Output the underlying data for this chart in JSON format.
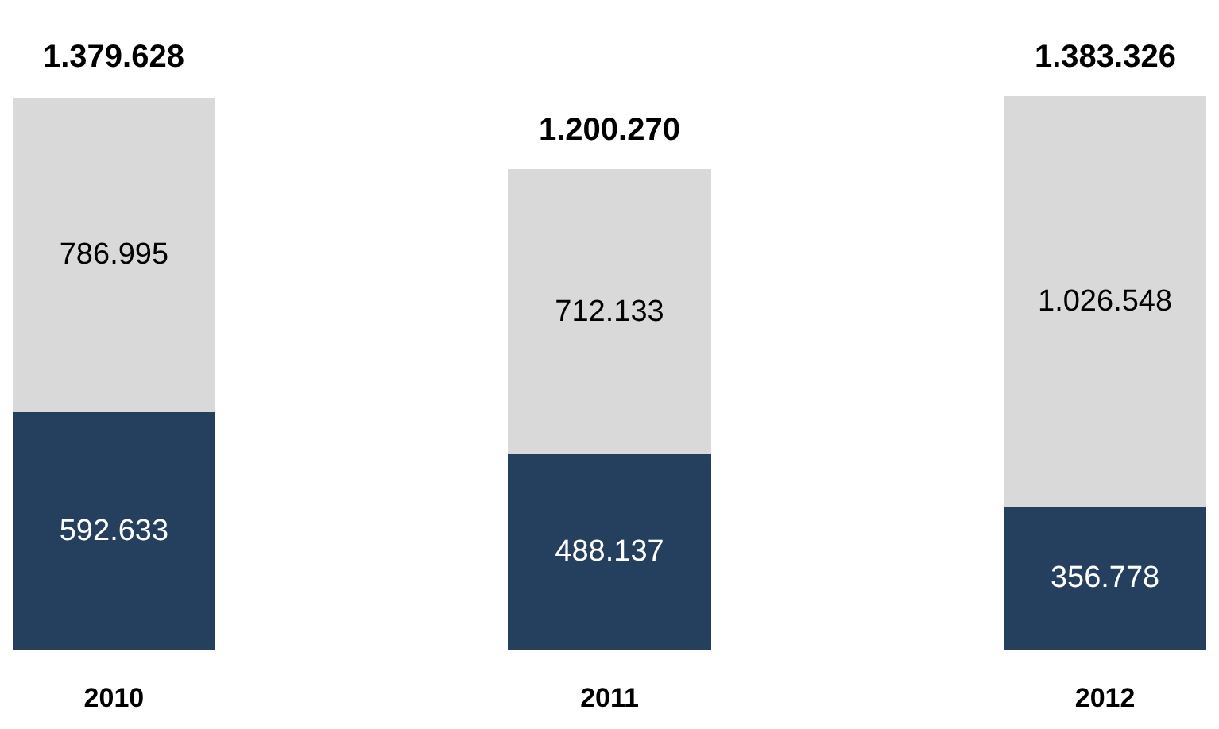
{
  "chart_data": {
    "type": "bar",
    "stacked": true,
    "categories": [
      "2010",
      "2011",
      "2012"
    ],
    "series": [
      {
        "color": "#253f5f",
        "values": [
          592633,
          488137,
          356778
        ],
        "value_labels": [
          "592.633",
          "488.137",
          "356.778"
        ]
      },
      {
        "color": "#d9d9d9",
        "values": [
          786995,
          712133,
          1026548
        ],
        "value_labels": [
          "786.995",
          "712.133",
          "1.026.548"
        ]
      }
    ],
    "totals": [
      "1.379.628",
      "1.200.270",
      "1.383.326"
    ]
  }
}
